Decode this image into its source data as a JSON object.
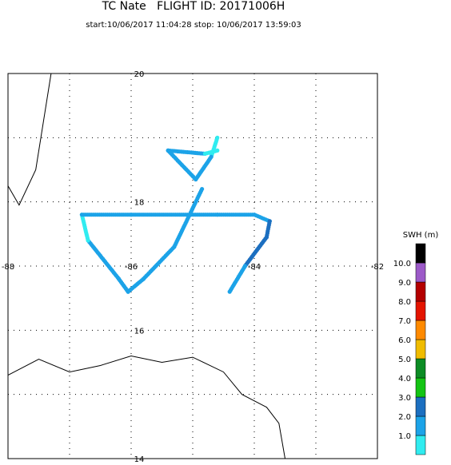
{
  "title": "TC Nate   FLIGHT ID: 20171006H",
  "subtitle": "start:10/06/2017 11:04:28 stop: 10/06/2017 13:59:03",
  "map": {
    "lon_range": [
      -88,
      -82
    ],
    "lat_range": [
      14,
      20
    ],
    "lon_labels": [
      "-88",
      "-86",
      "-84",
      "-82"
    ],
    "lat_labels": [
      "20",
      "18",
      "16",
      "14"
    ],
    "grid": "dotted",
    "coastline": {
      "north_west": [
        [
          -87.3,
          20
        ],
        [
          -87.55,
          18.5
        ],
        [
          -87.82,
          17.95
        ],
        [
          -88,
          18.25
        ]
      ],
      "south": [
        [
          -88,
          15.3
        ],
        [
          -87.5,
          15.55
        ],
        [
          -87.0,
          15.35
        ],
        [
          -86.5,
          15.45
        ],
        [
          -86.0,
          15.6
        ],
        [
          -85.5,
          15.5
        ],
        [
          -85.0,
          15.58
        ],
        [
          -84.5,
          15.35
        ],
        [
          -84.2,
          15.0
        ],
        [
          -83.8,
          14.8
        ],
        [
          -83.6,
          14.55
        ],
        [
          -83.5,
          14.0
        ]
      ]
    }
  },
  "flight_track": [
    {
      "from": [
        -86.0,
        17.8
      ],
      "to": [
        -84.6,
        17.8
      ],
      "swh": 1.5
    },
    {
      "from": [
        -84.6,
        17.8
      ],
      "to": [
        -84.0,
        17.8
      ],
      "swh": 1.7
    },
    {
      "from": [
        -84.0,
        17.8
      ],
      "to": [
        -83.75,
        17.7
      ],
      "swh": 1.8
    },
    {
      "from": [
        -83.75,
        17.7
      ],
      "to": [
        -83.8,
        17.45
      ],
      "swh": 2.6
    },
    {
      "from": [
        -83.8,
        17.45
      ],
      "to": [
        -84.15,
        17.0
      ],
      "swh": 2.2
    },
    {
      "from": [
        -84.15,
        17.0
      ],
      "to": [
        -84.4,
        16.6
      ],
      "swh": 1.9
    },
    {
      "from": [
        -84.6,
        19.0
      ],
      "to": [
        -84.7,
        18.7
      ],
      "swh": 0.8
    },
    {
      "from": [
        -84.7,
        18.7
      ],
      "to": [
        -84.95,
        18.35
      ],
      "swh": 1.6
    },
    {
      "from": [
        -84.95,
        18.35
      ],
      "to": [
        -85.4,
        18.8
      ],
      "swh": 1.9
    },
    {
      "from": [
        -85.4,
        18.8
      ],
      "to": [
        -84.8,
        18.75
      ],
      "swh": 1.0
    },
    {
      "from": [
        -84.8,
        18.75
      ],
      "to": [
        -84.6,
        18.8
      ],
      "swh": 0.7
    },
    {
      "from": [
        -84.85,
        18.2
      ],
      "to": [
        -85.3,
        17.3
      ],
      "swh": 1.7
    },
    {
      "from": [
        -85.3,
        17.3
      ],
      "to": [
        -85.8,
        16.8
      ],
      "swh": 1.8
    },
    {
      "from": [
        -85.8,
        16.8
      ],
      "to": [
        -86.05,
        16.6
      ],
      "swh": 1.6
    },
    {
      "from": [
        -86.05,
        16.6
      ],
      "to": [
        -86.2,
        16.8
      ],
      "swh": 1.5
    },
    {
      "from": [
        -86.2,
        16.8
      ],
      "to": [
        -86.7,
        17.4
      ],
      "swh": 1.4
    },
    {
      "from": [
        -86.7,
        17.4
      ],
      "to": [
        -86.8,
        17.8
      ],
      "swh": 0.8
    },
    {
      "from": [
        -86.8,
        17.8
      ],
      "to": [
        -86.0,
        17.8
      ],
      "swh": 1.3
    }
  ],
  "colorbar": {
    "label": "SWH (m)",
    "bins": [
      {
        "color": "#30ecf0"
      },
      {
        "color": "#1ca3e8"
      },
      {
        "color": "#1c6fc0"
      },
      {
        "color": "#14c414"
      },
      {
        "color": "#0c8c24"
      },
      {
        "color": "#f0bc00"
      },
      {
        "color": "#ff8a00"
      },
      {
        "color": "#e41400"
      },
      {
        "color": "#b40000"
      },
      {
        "color": "#9c5ac8"
      },
      {
        "color": "#000000"
      }
    ],
    "tick_labels": [
      "1.0",
      "2.0",
      "3.0",
      "4.0",
      "5.0",
      "6.0",
      "7.0",
      "8.0",
      "9.0",
      "10.0"
    ]
  }
}
